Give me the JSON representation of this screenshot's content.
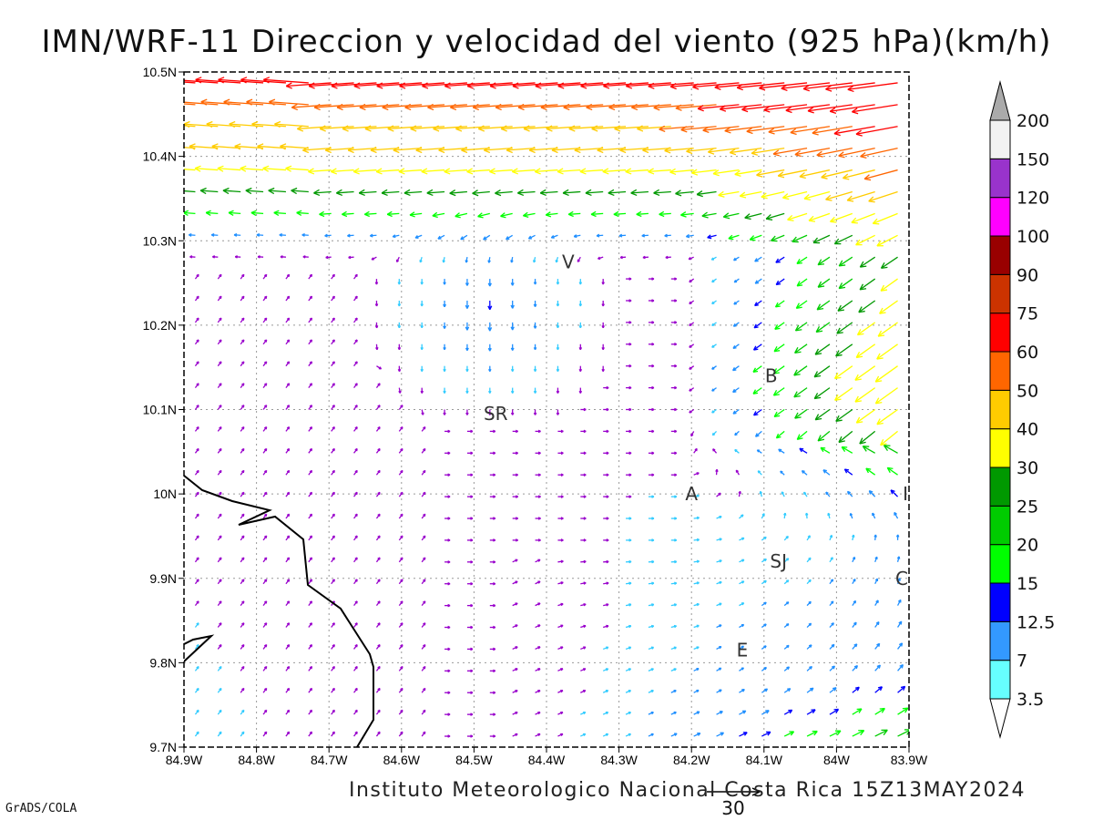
{
  "title": "IMN/WRF-11 Direccion y velocidad del viento (925 hPa)(km/h)",
  "credit": "Instituto Meteorologico Nacional Costa Rica 15Z13MAY2024",
  "software": "GrADS/COLA",
  "chart_data": {
    "type": "vector-field",
    "lon_range": [
      -84.9,
      -83.9
    ],
    "lat_range": [
      9.7,
      10.5
    ],
    "grid": true,
    "x_ticks": [
      "84.9W",
      "84.8W",
      "84.7W",
      "84.6W",
      "84.5W",
      "84.4W",
      "84.3W",
      "84.2W",
      "84.1W",
      "84W",
      "83.9W"
    ],
    "y_ticks": [
      "9.7N",
      "9.8N",
      "9.9N",
      "10N",
      "10.1N",
      "10.2N",
      "10.3N",
      "10.4N",
      "10.5N"
    ],
    "reference_vector": {
      "label": "30",
      "value": 30
    },
    "colorbar": {
      "labels": [
        "3.5",
        "7",
        "12.5",
        "15",
        "20",
        "25",
        "30",
        "40",
        "50",
        "60",
        "75",
        "90",
        "100",
        "120",
        "150",
        "200"
      ],
      "colors": [
        "#66ffff",
        "#3399ff",
        "#0000ff",
        "#00ff00",
        "#00cc00",
        "#009900",
        "#ffff00",
        "#ffcc00",
        "#ff6600",
        "#ff0000",
        "#cc3300",
        "#990000",
        "#ff00ff",
        "#9933cc",
        "#f2f2f2",
        "#aaaaaa"
      ]
    },
    "locations": [
      {
        "label": "V",
        "lon": -84.37,
        "lat": 10.275
      },
      {
        "label": "B",
        "lon": -84.09,
        "lat": 10.14
      },
      {
        "label": "SR",
        "lon": -84.47,
        "lat": 10.095
      },
      {
        "label": "A",
        "lon": -84.2,
        "lat": 10.0
      },
      {
        "label": "SJ",
        "lon": -84.08,
        "lat": 9.92
      },
      {
        "label": "C",
        "lon": -83.91,
        "lat": 9.9
      },
      {
        "label": "E",
        "lon": -84.13,
        "lat": 9.815
      },
      {
        "label": "I",
        "lon": -83.905,
        "lat": 10.0
      }
    ]
  }
}
